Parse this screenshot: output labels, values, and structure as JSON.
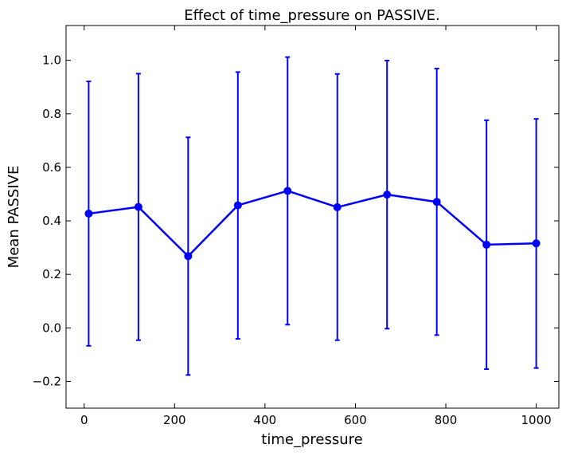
{
  "chart_data": {
    "type": "line",
    "title": "Effect of time_pressure on PASSIVE.",
    "xlabel": "time_pressure",
    "ylabel": "Mean PASSIVE",
    "xlim": [
      -40,
      1050
    ],
    "ylim": [
      -0.3,
      1.13
    ],
    "x_ticks": [
      0,
      200,
      400,
      600,
      800,
      1000
    ],
    "x_tick_labels": [
      "0",
      "200",
      "400",
      "600",
      "800",
      "1000"
    ],
    "y_ticks": [
      -0.2,
      0.0,
      0.2,
      0.4,
      0.6,
      0.8,
      1.0
    ],
    "y_tick_labels": [
      "−0.2",
      "0.0",
      "0.2",
      "0.4",
      "0.6",
      "0.8",
      "1.0"
    ],
    "grid": false,
    "series": [
      {
        "color": "#0000ff",
        "points": [
          {
            "x": 10,
            "y": 0.427,
            "lower": -0.067,
            "upper": 0.921
          },
          {
            "x": 120,
            "y": 0.452,
            "lower": -0.046,
            "upper": 0.95
          },
          {
            "x": 230,
            "y": 0.268,
            "lower": -0.176,
            "upper": 0.712
          },
          {
            "x": 340,
            "y": 0.458,
            "lower": -0.041,
            "upper": 0.956
          },
          {
            "x": 450,
            "y": 0.512,
            "lower": 0.012,
            "upper": 1.012
          },
          {
            "x": 560,
            "y": 0.451,
            "lower": -0.046,
            "upper": 0.949
          },
          {
            "x": 670,
            "y": 0.498,
            "lower": -0.003,
            "upper": 0.999
          },
          {
            "x": 780,
            "y": 0.471,
            "lower": -0.027,
            "upper": 0.969
          },
          {
            "x": 890,
            "y": 0.311,
            "lower": -0.154,
            "upper": 0.776
          },
          {
            "x": 1000,
            "y": 0.316,
            "lower": -0.15,
            "upper": 0.781
          }
        ]
      }
    ]
  }
}
